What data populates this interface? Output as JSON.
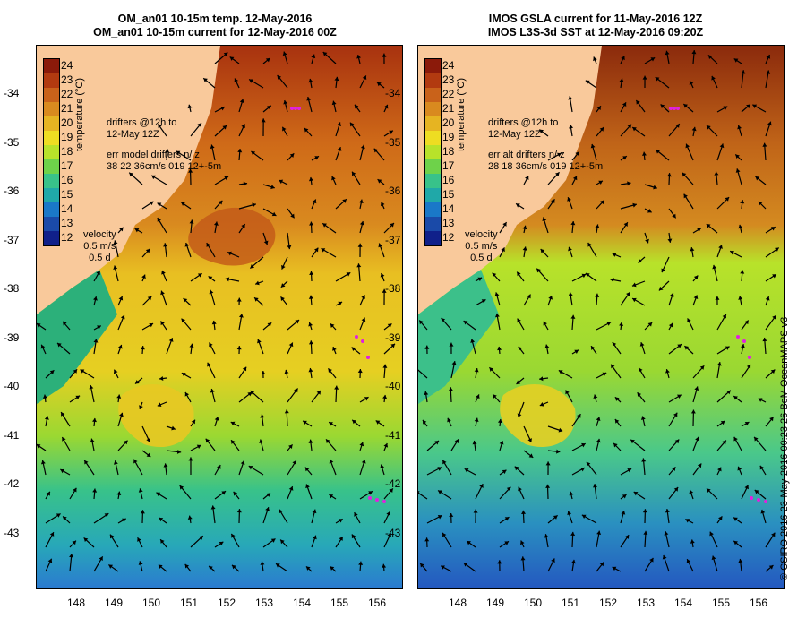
{
  "left_panel": {
    "title_line1": "OM_an01 10-15m temp. 12-May-2016",
    "title_line2": "OM_an01 10-15m current for 12-May-2016 00Z",
    "drifters_line1": "drifters @12h to",
    "drifters_line2": "12-May 12Z",
    "err_line1": "err model drifters n/ z",
    "err_line2": "38 22 36cm/s 019 12+-5m"
  },
  "right_panel": {
    "title_line1": "IMOS GSLA current for 11-May-2016 12Z",
    "title_line2": "IMOS L3S-3d SST at 12-May-2016 09:20Z",
    "drifters_line1": "drifters @12h to",
    "drifters_line2": "12-May 12Z",
    "err_line1": "err alt drifters n/ z",
    "err_line2": "28 18 36cm/s 019 12+-5m"
  },
  "velocity_legend": {
    "label": "velocity",
    "speed": "0.5 m/s",
    "duration": "0.5 d"
  },
  "colorbar": {
    "title": "temperature (°C)",
    "ticks": [
      "24",
      "23",
      "22",
      "21",
      "20",
      "19",
      "18",
      "17",
      "16",
      "15",
      "14",
      "13",
      "12"
    ],
    "colors": [
      "#8b1a0a",
      "#b23a10",
      "#c9621a",
      "#d98a1f",
      "#e6b422",
      "#eedd22",
      "#b8e22a",
      "#6ed24a",
      "#38c28a",
      "#20a8a8",
      "#1a78c8",
      "#1a4aa8",
      "#10208a"
    ]
  },
  "y_axis_labels": [
    "-34",
    "-35",
    "-36",
    "-37",
    "-38",
    "-39",
    "-40",
    "-41",
    "-42",
    "-43"
  ],
  "x_axis_labels": [
    "148",
    "149",
    "150",
    "151",
    "152",
    "153",
    "154",
    "155",
    "156"
  ],
  "copyright": "© CSIRO 2016   23-May-2016 00:23:26 BoM OceanMAPS v3",
  "colors": {
    "land": "#f9c99b",
    "drifter": "#e020e0"
  }
}
